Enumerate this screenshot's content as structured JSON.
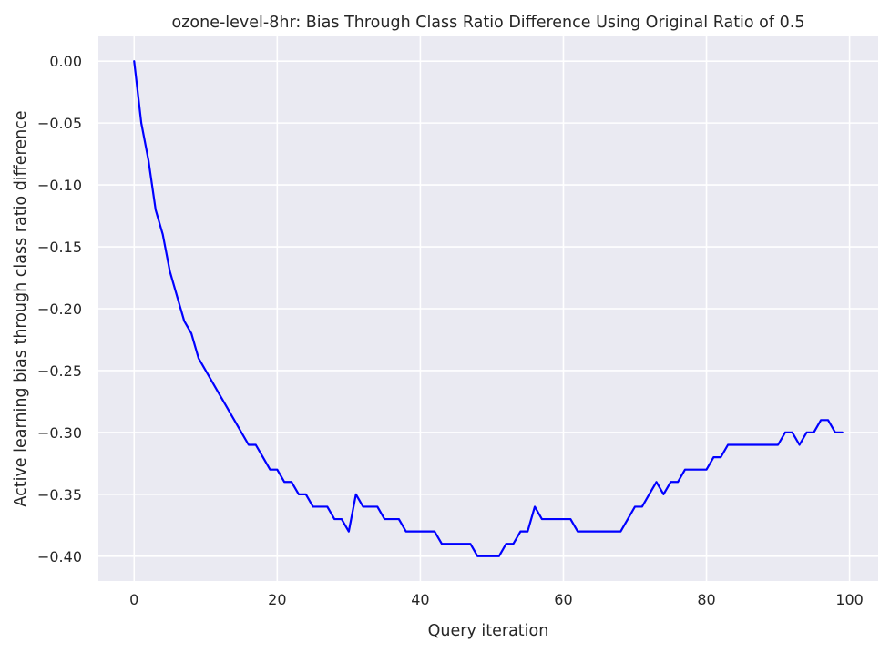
{
  "chart_data": {
    "type": "line",
    "title": "ozone-level-8hr: Bias Through Class Ratio Difference Using Original Ratio of 0.5",
    "xlabel": "Query iteration",
    "ylabel": "Active learning bias through class ratio difference",
    "xlim": [
      -5,
      104
    ],
    "ylim": [
      -0.42,
      0.02
    ],
    "xticks": [
      0,
      20,
      40,
      60,
      80,
      100
    ],
    "xtick_labels": [
      "0",
      "20",
      "40",
      "60",
      "80",
      "100"
    ],
    "yticks": [
      0.0,
      -0.05,
      -0.1,
      -0.15,
      -0.2,
      -0.25,
      -0.3,
      -0.35,
      -0.4
    ],
    "ytick_labels": [
      "0.00",
      "−0.05",
      "−0.10",
      "−0.15",
      "−0.20",
      "−0.25",
      "−0.30",
      "−0.35",
      "−0.40"
    ],
    "grid": true,
    "background": "#eaeaf2",
    "grid_color": "#ffffff",
    "series": [
      {
        "color": "#0000ff",
        "x": [
          0,
          1,
          2,
          3,
          4,
          5,
          6,
          7,
          8,
          9,
          10,
          11,
          12,
          13,
          14,
          15,
          16,
          17,
          18,
          19,
          20,
          21,
          22,
          23,
          24,
          25,
          26,
          27,
          28,
          29,
          30,
          31,
          32,
          33,
          34,
          35,
          36,
          37,
          38,
          39,
          40,
          41,
          42,
          43,
          44,
          45,
          46,
          47,
          48,
          49,
          50,
          51,
          52,
          53,
          54,
          55,
          56,
          57,
          58,
          59,
          60,
          61,
          62,
          63,
          64,
          65,
          66,
          67,
          68,
          69,
          70,
          71,
          72,
          73,
          74,
          75,
          76,
          77,
          78,
          79,
          80,
          81,
          82,
          83,
          84,
          85,
          86,
          87,
          88,
          89,
          90,
          91,
          92,
          93,
          94,
          95,
          96,
          97,
          98,
          99
        ],
        "y": [
          0.0,
          -0.05,
          -0.08,
          -0.12,
          -0.14,
          -0.17,
          -0.19,
          -0.21,
          -0.22,
          -0.24,
          -0.25,
          -0.26,
          -0.27,
          -0.28,
          -0.29,
          -0.3,
          -0.31,
          -0.31,
          -0.32,
          -0.33,
          -0.33,
          -0.34,
          -0.34,
          -0.35,
          -0.35,
          -0.36,
          -0.36,
          -0.36,
          -0.37,
          -0.37,
          -0.38,
          -0.35,
          -0.36,
          -0.36,
          -0.36,
          -0.37,
          -0.37,
          -0.37,
          -0.38,
          -0.38,
          -0.38,
          -0.38,
          -0.38,
          -0.39,
          -0.39,
          -0.39,
          -0.39,
          -0.39,
          -0.4,
          -0.4,
          -0.4,
          -0.4,
          -0.39,
          -0.39,
          -0.38,
          -0.38,
          -0.36,
          -0.37,
          -0.37,
          -0.37,
          -0.37,
          -0.37,
          -0.38,
          -0.38,
          -0.38,
          -0.38,
          -0.38,
          -0.38,
          -0.38,
          -0.37,
          -0.36,
          -0.36,
          -0.35,
          -0.34,
          -0.35,
          -0.34,
          -0.34,
          -0.33,
          -0.33,
          -0.33,
          -0.33,
          -0.32,
          -0.32,
          -0.31,
          -0.31,
          -0.31,
          -0.31,
          -0.31,
          -0.31,
          -0.31,
          -0.31,
          -0.3,
          -0.3,
          -0.31,
          -0.3,
          -0.3,
          -0.29,
          -0.29,
          -0.3,
          -0.3
        ]
      }
    ]
  }
}
